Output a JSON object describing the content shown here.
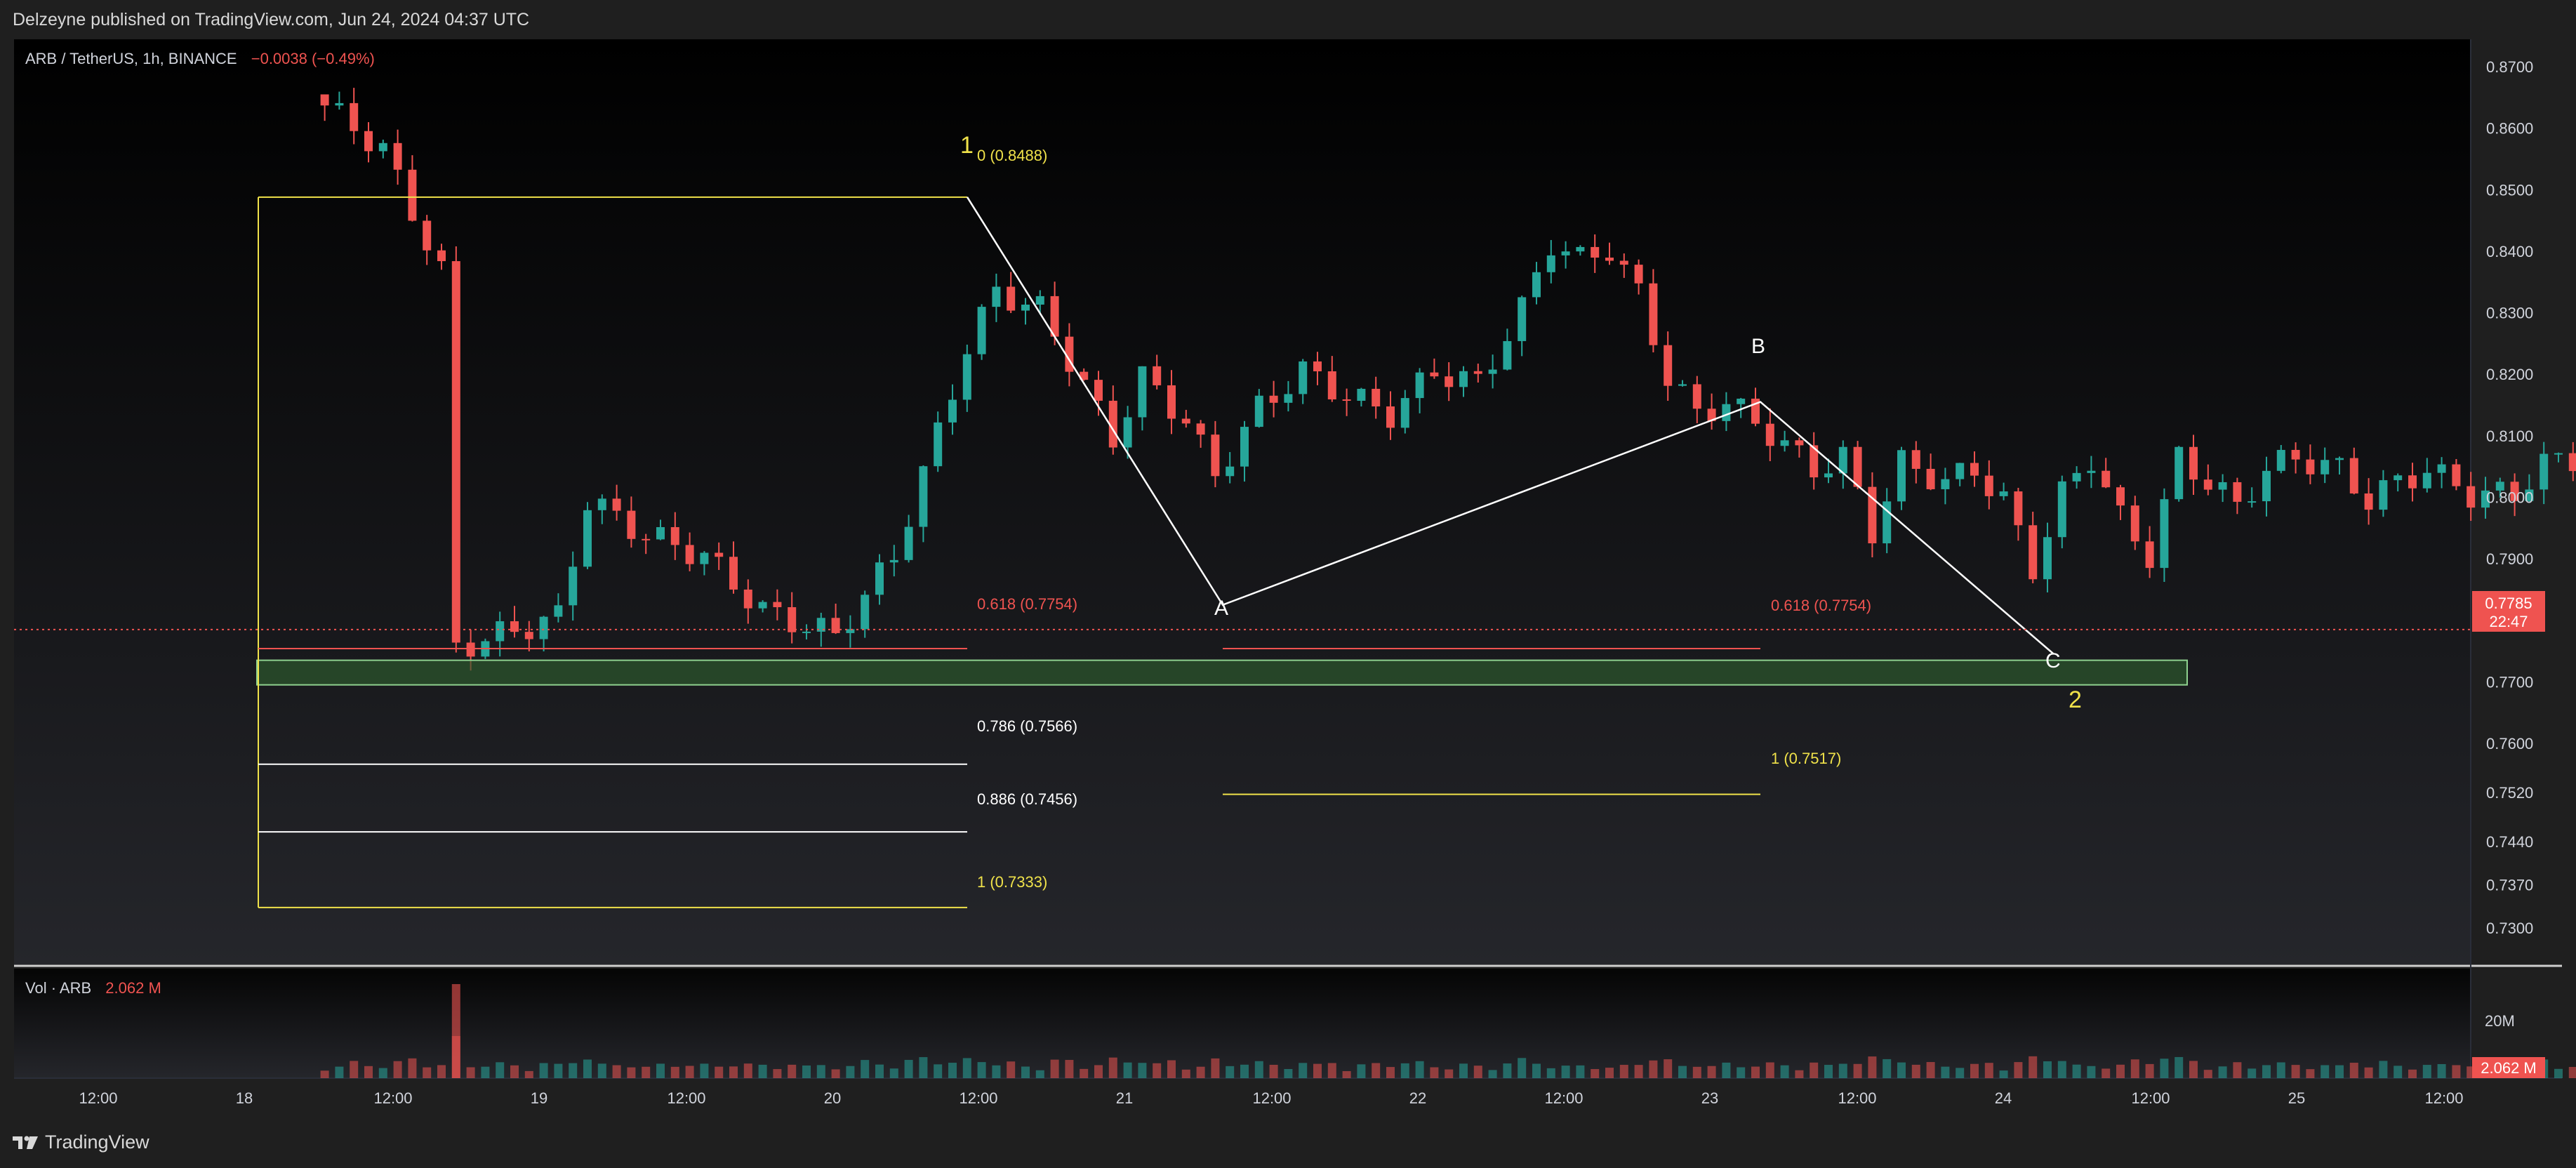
{
  "header": {
    "publish_text": "Delzeyne published on TradingView.com, Jun 24, 2024 04:37 UTC",
    "symbol_text": "ARB / TetherUS, 1h, BINANCE",
    "change_text": "−0.0038 (−0.49%)"
  },
  "volume_header": {
    "label": "Vol · ARB",
    "value": "2.062 M"
  },
  "branding": {
    "logo_text": "TradingView"
  },
  "price_scale": {
    "ticks": [
      "0.8700",
      "0.8600",
      "0.8500",
      "0.8400",
      "0.8300",
      "0.8200",
      "0.8100",
      "0.8000",
      "0.7900",
      "0.7700",
      "0.7600",
      "0.7520",
      "0.7440",
      "0.7370",
      "0.7300"
    ],
    "last_price": "0.7785",
    "countdown": "22:47"
  },
  "volume_scale": {
    "tick": "20M",
    "last_volume": "2.062 M"
  },
  "time_axis": [
    "12:00",
    "18",
    "12:00",
    "19",
    "12:00",
    "20",
    "12:00",
    "21",
    "12:00",
    "22",
    "12:00",
    "23",
    "12:00",
    "24",
    "12:00",
    "25",
    "12:00"
  ],
  "colors": {
    "up": "#26a69a",
    "down": "#ef5350",
    "fib_yellow": "#f0e24a",
    "fib_red": "#ef5350",
    "fib_white": "#ffffff",
    "zone": "#4caf50",
    "wave_label": "#f0e24a"
  },
  "annotations": {
    "fib_left": {
      "level0": "0 (0.8488)",
      "level618": "0.618 (0.7754)",
      "level786": "0.786 (0.7566)",
      "level886": "0.886 (0.7456)",
      "level1": "1 (0.7333)"
    },
    "fib_right": {
      "level618": "0.618 (0.7754)",
      "level1": "1 (0.7517)"
    },
    "wave_labels": {
      "w1": "1",
      "w2": "2",
      "a": "A",
      "b": "B",
      "c": "C"
    }
  },
  "chart_data": {
    "type": "candlestick",
    "symbol": "ARB / TetherUS",
    "interval": "1h",
    "exchange": "BINANCE",
    "ylim": [
      0.7245,
      0.874
    ],
    "points": [
      {
        "t": 21,
        "v": 0.8655
      },
      {
        "t": 26,
        "v": 0.8565
      },
      {
        "t": 30,
        "v": 0.8365
      },
      {
        "t": 31,
        "v": 0.7755
      },
      {
        "t": 38,
        "v": 0.7805
      },
      {
        "t": 40,
        "v": 0.7995
      },
      {
        "t": 44,
        "v": 0.7938
      },
      {
        "t": 48,
        "v": 0.7905
      },
      {
        "t": 52,
        "v": 0.7815
      },
      {
        "t": 57,
        "v": 0.7775
      },
      {
        "t": 61,
        "v": 0.7905
      },
      {
        "t": 64,
        "v": 0.8105
      },
      {
        "t": 66,
        "v": 0.8245
      },
      {
        "t": 68,
        "v": 0.8335
      },
      {
        "t": 71,
        "v": 0.8305
      },
      {
        "t": 73,
        "v": 0.8225
      },
      {
        "t": 76,
        "v": 0.8095
      },
      {
        "t": 78,
        "v": 0.8195
      },
      {
        "t": 81,
        "v": 0.8125
      },
      {
        "t": 83,
        "v": 0.8035
      },
      {
        "t": 86,
        "v": 0.8145
      },
      {
        "t": 89,
        "v": 0.8205
      },
      {
        "t": 92,
        "v": 0.8165
      },
      {
        "t": 95,
        "v": 0.8135
      },
      {
        "t": 98,
        "v": 0.8205
      },
      {
        "t": 101,
        "v": 0.8185
      },
      {
        "t": 104,
        "v": 0.8305
      },
      {
        "t": 106,
        "v": 0.8415
      },
      {
        "t": 108,
        "v": 0.8385
      },
      {
        "t": 110,
        "v": 0.8405
      },
      {
        "t": 112,
        "v": 0.833
      },
      {
        "t": 114,
        "v": 0.8195
      },
      {
        "t": 116,
        "v": 0.8135
      },
      {
        "t": 118,
        "v": 0.8155
      },
      {
        "t": 121,
        "v": 0.8105
      },
      {
        "t": 124,
        "v": 0.8045
      },
      {
        "t": 126,
        "v": 0.8065
      },
      {
        "t": 128,
        "v": 0.7945
      },
      {
        "t": 130,
        "v": 0.8055
      },
      {
        "t": 133,
        "v": 0.8025
      },
      {
        "t": 135,
        "v": 0.8045
      },
      {
        "t": 137,
        "v": 0.7995
      },
      {
        "t": 139,
        "v": 0.7885
      },
      {
        "t": 141,
        "v": 0.8005
      },
      {
        "t": 143,
        "v": 0.8065
      },
      {
        "t": 145,
        "v": 0.7965
      },
      {
        "t": 147,
        "v": 0.7905
      },
      {
        "t": 149,
        "v": 0.8065
      },
      {
        "t": 151,
        "v": 0.8025
      },
      {
        "t": 153,
        "v": 0.7985
      },
      {
        "t": 155,
        "v": 0.8045
      },
      {
        "t": 157,
        "v": 0.8065
      },
      {
        "t": 160,
        "v": 0.8045
      },
      {
        "t": 162,
        "v": 0.7995
      },
      {
        "t": 164,
        "v": 0.8025
      },
      {
        "t": 166,
        "v": 0.8045
      },
      {
        "t": 169,
        "v": 0.8005
      },
      {
        "t": 172,
        "v": 0.8005
      },
      {
        "t": 174,
        "v": 0.8055
      },
      {
        "t": 177,
        "v": 0.8065
      },
      {
        "t": 180,
        "v": 0.8085
      },
      {
        "t": 183,
        "v": 0.8065
      },
      {
        "t": 186,
        "v": 0.8085
      },
      {
        "t": 189,
        "v": 0.8095
      },
      {
        "t": 192,
        "v": 0.8125
      },
      {
        "t": 195,
        "v": 0.8145
      },
      {
        "t": 197,
        "v": 0.8105
      },
      {
        "t": 199,
        "v": 0.8135
      },
      {
        "t": 201,
        "v": 0.8145
      },
      {
        "t": 203,
        "v": 0.8085
      },
      {
        "t": 205,
        "v": 0.8065
      },
      {
        "t": 207,
        "v": 0.7985
      },
      {
        "t": 209,
        "v": 0.7905
      },
      {
        "t": 211,
        "v": 0.7885
      },
      {
        "t": 213,
        "v": 0.7935
      },
      {
        "t": 215,
        "v": 0.7875
      },
      {
        "t": 217,
        "v": 0.7845
      },
      {
        "t": 219,
        "v": 0.7905
      },
      {
        "t": 221,
        "v": 0.7845
      },
      {
        "t": 223,
        "v": 0.7825
      },
      {
        "t": 224,
        "v": 0.7785
      }
    ],
    "fib_levels": [
      {
        "level": "0",
        "price": 0.8488
      },
      {
        "level": "0.618",
        "price": 0.7754
      },
      {
        "level": "0.786",
        "price": 0.7566
      },
      {
        "level": "0.886",
        "price": 0.7456
      },
      {
        "level": "1",
        "price": 0.7333
      }
    ],
    "fib_extension": [
      {
        "level": "0.618",
        "price": 0.7754
      },
      {
        "level": "1",
        "price": 0.7517
      }
    ],
    "support_zone": [
      0.7695,
      0.7735
    ],
    "abc_path": [
      {
        "label": "",
        "t": 0,
        "price": 0.8488
      },
      {
        "label": "A",
        "t": 0,
        "price": 0.7825
      },
      {
        "label": "B",
        "t": 0,
        "price": 0.8155
      },
      {
        "label": "C",
        "t": 0,
        "price": 0.7745
      }
    ],
    "volume": {
      "label": "Vol · ARB",
      "last": 2.062,
      "unit": "M"
    }
  }
}
